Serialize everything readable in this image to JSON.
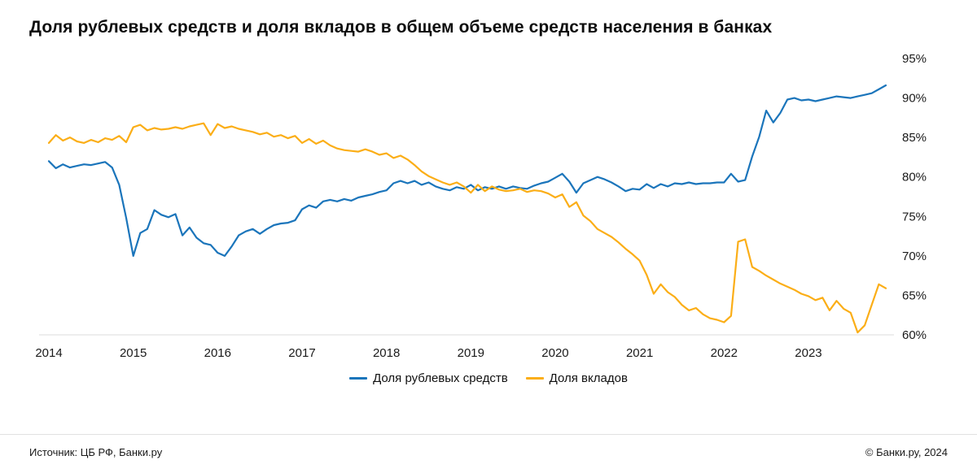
{
  "title": "Доля рублевых средств и доля вкладов в общем объеме средств населения в банках",
  "footer": {
    "source": "Источник: ЦБ РФ, Банки.ру",
    "copyright": "© Банки.ру, 2024"
  },
  "chart_data": {
    "type": "line",
    "x_tick_labels": [
      "2014",
      "2015",
      "2016",
      "2017",
      "2018",
      "2019",
      "2020",
      "2021",
      "2022",
      "2023"
    ],
    "points_per_year": 12,
    "y_ticks": [
      60,
      65,
      70,
      75,
      80,
      85,
      90,
      95
    ],
    "y_tick_suffix": "%",
    "ylim": [
      60,
      95
    ],
    "grid": false,
    "legend_position": "bottom",
    "series": [
      {
        "name": "Доля рублевых средств",
        "color": "#1B75BB",
        "values": [
          82.0,
          81.1,
          81.6,
          81.2,
          81.4,
          81.6,
          81.5,
          81.7,
          81.9,
          81.2,
          79.0,
          74.8,
          70.0,
          72.9,
          73.4,
          75.8,
          75.2,
          74.9,
          75.3,
          72.6,
          73.6,
          72.3,
          71.6,
          71.4,
          70.4,
          70.0,
          71.2,
          72.6,
          73.1,
          73.4,
          72.8,
          73.4,
          73.9,
          74.1,
          74.2,
          74.5,
          75.9,
          76.4,
          76.1,
          76.9,
          77.1,
          76.9,
          77.2,
          77.0,
          77.4,
          77.6,
          77.8,
          78.1,
          78.3,
          79.2,
          79.5,
          79.2,
          79.5,
          79.0,
          79.3,
          78.8,
          78.5,
          78.3,
          78.7,
          78.5,
          79.0,
          78.3,
          78.7,
          78.5,
          78.8,
          78.5,
          78.8,
          78.6,
          78.5,
          78.9,
          79.2,
          79.4,
          79.9,
          80.4,
          79.4,
          78.0,
          79.2,
          79.6,
          80.0,
          79.7,
          79.3,
          78.8,
          78.2,
          78.5,
          78.4,
          79.1,
          78.6,
          79.1,
          78.8,
          79.2,
          79.1,
          79.3,
          79.1,
          79.2,
          79.2,
          79.3,
          79.3,
          80.4,
          79.4,
          79.6,
          82.6,
          85.1,
          88.4,
          86.9,
          88.1,
          89.8,
          90.0,
          89.7,
          89.8,
          89.6,
          89.8,
          90.0,
          90.2,
          90.1,
          90.0,
          90.2,
          90.4,
          90.6,
          91.1,
          91.6
        ]
      },
      {
        "name": "Доля вкладов",
        "color": "#FBAE17",
        "values": [
          84.3,
          85.3,
          84.6,
          85.0,
          84.5,
          84.3,
          84.7,
          84.4,
          84.9,
          84.7,
          85.2,
          84.4,
          86.3,
          86.6,
          85.9,
          86.2,
          86.0,
          86.1,
          86.3,
          86.1,
          86.4,
          86.6,
          86.8,
          85.3,
          86.7,
          86.2,
          86.4,
          86.1,
          85.9,
          85.7,
          85.4,
          85.6,
          85.1,
          85.3,
          84.9,
          85.2,
          84.3,
          84.8,
          84.2,
          84.6,
          84.0,
          83.6,
          83.4,
          83.3,
          83.2,
          83.5,
          83.2,
          82.8,
          83.0,
          82.4,
          82.7,
          82.2,
          81.5,
          80.7,
          80.1,
          79.7,
          79.3,
          79.0,
          79.3,
          78.8,
          78.0,
          79.0,
          78.2,
          78.8,
          78.4,
          78.2,
          78.3,
          78.5,
          78.1,
          78.3,
          78.2,
          77.9,
          77.4,
          77.8,
          76.2,
          76.8,
          75.1,
          74.4,
          73.4,
          72.9,
          72.4,
          71.7,
          70.9,
          70.2,
          69.4,
          67.6,
          65.2,
          66.4,
          65.4,
          64.8,
          63.8,
          63.1,
          63.4,
          62.6,
          62.1,
          61.9,
          61.6,
          62.4,
          71.8,
          72.1,
          68.6,
          68.1,
          67.5,
          67.0,
          66.5,
          66.1,
          65.7,
          65.2,
          64.9,
          64.4,
          64.7,
          63.1,
          64.3,
          63.3,
          62.8,
          60.3,
          61.2,
          63.8,
          66.4,
          65.9
        ]
      }
    ]
  }
}
